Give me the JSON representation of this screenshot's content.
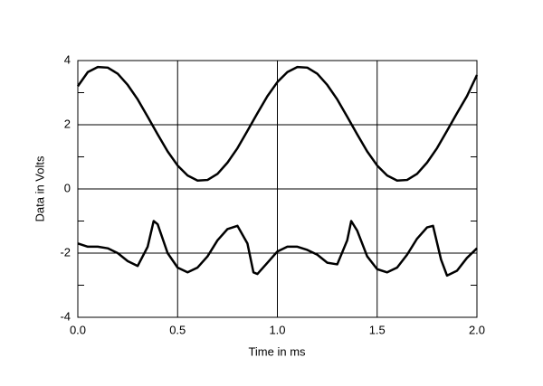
{
  "chart_data": {
    "type": "line",
    "xlabel": "Time in ms",
    "ylabel": "Data in Volts",
    "xlim": [
      0,
      2
    ],
    "ylim": [
      -4,
      4
    ],
    "xticks": [
      {
        "value": 0,
        "label": "0.0"
      },
      0.5,
      {
        "value": 1,
        "label": "1.0"
      },
      1.5,
      {
        "value": 2,
        "label": "2.0"
      }
    ],
    "yticks": [
      4,
      2,
      0,
      -2,
      -4
    ],
    "yminorticks": [
      3,
      1,
      -1,
      -3
    ],
    "grid": true,
    "series": [
      {
        "color": "#000000",
        "x": [
          0,
          0.05,
          0.1,
          0.15,
          0.2,
          0.25,
          0.3,
          0.35,
          0.4,
          0.45,
          0.5,
          0.55,
          0.6,
          0.65,
          0.7,
          0.75,
          0.8,
          0.85,
          0.9,
          0.95,
          1.0,
          1.05,
          1.1,
          1.15,
          1.2,
          1.25,
          1.3,
          1.35,
          1.4,
          1.45,
          1.5,
          1.55,
          1.6,
          1.65,
          1.7,
          1.75,
          1.8,
          1.85,
          1.9,
          1.95,
          2.0
        ],
        "values": [
          3.2,
          3.64,
          3.8,
          3.78,
          3.59,
          3.24,
          2.79,
          2.25,
          1.7,
          1.17,
          0.73,
          0.42,
          0.26,
          0.28,
          0.47,
          0.82,
          1.27,
          1.81,
          2.36,
          2.89,
          3.33,
          3.64,
          3.8,
          3.78,
          3.59,
          3.24,
          2.79,
          2.25,
          1.7,
          1.17,
          0.73,
          0.42,
          0.26,
          0.28,
          0.47,
          0.82,
          1.27,
          1.81,
          2.36,
          2.89,
          3.55
        ]
      },
      {
        "color": "#000000",
        "x": [
          0,
          0.05,
          0.1,
          0.15,
          0.2,
          0.25,
          0.3,
          0.35,
          0.38,
          0.4,
          0.45,
          0.5,
          0.55,
          0.6,
          0.65,
          0.7,
          0.75,
          0.8,
          0.85,
          0.88,
          0.9,
          0.95,
          1.0,
          1.05,
          1.1,
          1.15,
          1.2,
          1.25,
          1.3,
          1.35,
          1.37,
          1.4,
          1.45,
          1.5,
          1.55,
          1.6,
          1.65,
          1.7,
          1.75,
          1.78,
          1.82,
          1.85,
          1.9,
          1.95,
          2.0
        ],
        "values": [
          -1.7,
          -1.8,
          -1.8,
          -1.85,
          -2.0,
          -2.25,
          -2.4,
          -1.8,
          -1.0,
          -1.1,
          -2.0,
          -2.45,
          -2.6,
          -2.45,
          -2.1,
          -1.6,
          -1.25,
          -1.15,
          -1.7,
          -2.6,
          -2.65,
          -2.3,
          -1.95,
          -1.8,
          -1.8,
          -1.9,
          -2.05,
          -2.3,
          -2.35,
          -1.6,
          -1.0,
          -1.3,
          -2.1,
          -2.5,
          -2.6,
          -2.45,
          -2.05,
          -1.55,
          -1.2,
          -1.15,
          -2.2,
          -2.7,
          -2.55,
          -2.15,
          -1.85
        ]
      }
    ]
  }
}
